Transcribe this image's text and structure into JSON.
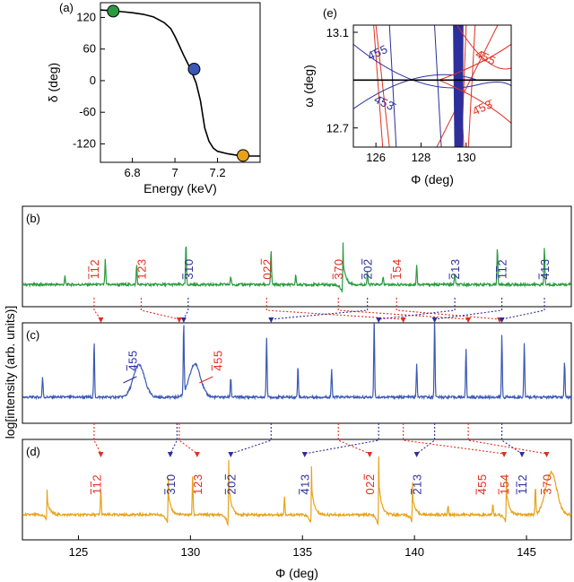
{
  "figure": {
    "shared_ylabel": "log[intensity (arb. units)]",
    "colors": {
      "green": "#2a9a40",
      "blue": "#3a58b4",
      "orange": "#e8a21a",
      "red": "#e03020",
      "navy": "#2c2f9c"
    }
  },
  "chart_data": [
    {
      "id": "a",
      "panel_label": "(a)",
      "type": "line",
      "xlabel": "Energy (keV)",
      "ylabel": "δ (deg)",
      "xlim": [
        6.65,
        7.4
      ],
      "ylim": [
        -155,
        148
      ],
      "xticks": [
        6.8,
        7,
        7.2
      ],
      "xtick_labels": [
        "6.8",
        "7",
        "7.2"
      ],
      "yticks": [
        120,
        60,
        0,
        -60,
        -120
      ],
      "ytick_labels": [
        "120",
        "60",
        "0",
        "-60",
        "-120"
      ],
      "curve": {
        "x": [
          6.65,
          6.7,
          6.75,
          6.8,
          6.85,
          6.9,
          6.95,
          6.98,
          7.0,
          7.02,
          7.04,
          7.06,
          7.08,
          7.1,
          7.12,
          7.14,
          7.16,
          7.18,
          7.2,
          7.25,
          7.3,
          7.35,
          7.4
        ],
        "y": [
          134,
          133,
          131,
          129,
          126,
          121,
          110,
          99,
          84,
          67,
          49,
          33,
          15,
          -5,
          -38,
          -90,
          -115,
          -128,
          -134,
          -139,
          -142,
          -143,
          -143
        ]
      },
      "markers": [
        {
          "x": 6.71,
          "y": 132,
          "color": "green"
        },
        {
          "x": 7.09,
          "y": 22,
          "color": "blue"
        },
        {
          "x": 7.32,
          "y": -142,
          "color": "orange"
        }
      ]
    },
    {
      "id": "e",
      "panel_label": "(e)",
      "type": "line",
      "xlabel": "Φ (deg)",
      "ylabel": "ω (deg)",
      "xlim": [
        125,
        132
      ],
      "ylim": [
        12.62,
        13.13
      ],
      "xticks": [
        126,
        128,
        130
      ],
      "xtick_labels": [
        "126",
        "128",
        "130"
      ],
      "yticks": [
        13.1,
        12.7
      ],
      "ytick_labels": [
        "13.1",
        "12.7"
      ],
      "horizontal_line": 12.9,
      "labels": [
        {
          "text": "4̄55",
          "x": 126.15,
          "y": 13.0,
          "color": "blue",
          "rotate": -25
        },
        {
          "text": "4̄53̄",
          "x": 126.3,
          "y": 12.79,
          "color": "blue",
          "rotate": 25
        },
        {
          "text": "4̄55",
          "x": 130.8,
          "y": 12.98,
          "color": "red",
          "rotate": 25
        },
        {
          "text": "4̄53̄",
          "x": 130.8,
          "y": 12.77,
          "color": "red",
          "rotate": -25
        }
      ]
    },
    {
      "id": "b",
      "panel_label": "(b)",
      "type": "line",
      "color": "green",
      "xlim": [
        122.5,
        147
      ],
      "ylim": [
        0,
        1
      ],
      "baseline": 0.22,
      "peaks": [
        {
          "x": 124.4,
          "h": 0.08,
          "kind": "spike"
        },
        {
          "x": 126.2,
          "h": 0.25,
          "kind": "spike"
        },
        {
          "x": 127.6,
          "h": 0.2,
          "kind": "spike"
        },
        {
          "x": 129.8,
          "h": 0.42,
          "kind": "spike"
        },
        {
          "x": 131.8,
          "h": 0.08,
          "kind": "spike"
        },
        {
          "x": 133.6,
          "h": 0.35,
          "kind": "spike"
        },
        {
          "x": 134.7,
          "h": 0.1,
          "kind": "spike"
        },
        {
          "x": 136.8,
          "h": 0.42,
          "kind": "disp"
        },
        {
          "x": 137.9,
          "h": 0.12,
          "kind": "spike"
        },
        {
          "x": 138.6,
          "h": 0.08,
          "kind": "spike"
        },
        {
          "x": 140.1,
          "h": 0.2,
          "kind": "spike"
        },
        {
          "x": 141.8,
          "h": 0.12,
          "kind": "spike"
        },
        {
          "x": 143.7,
          "h": 0.38,
          "kind": "spike"
        },
        {
          "x": 145.8,
          "h": 0.38,
          "kind": "spike"
        }
      ]
    },
    {
      "id": "c",
      "panel_label": "(c)",
      "type": "line",
      "color": "blue",
      "xlim": [
        122.5,
        147
      ],
      "ylim": [
        0,
        1
      ],
      "baseline": 0.26,
      "peaks": [
        {
          "x": 123.4,
          "h": 0.2,
          "kind": "spike"
        },
        {
          "x": 125.7,
          "h": 0.55,
          "kind": "spike"
        },
        {
          "x": 127.7,
          "h": 0.32,
          "kind": "bump"
        },
        {
          "x": 129.7,
          "h": 0.72,
          "kind": "spike"
        },
        {
          "x": 130.2,
          "h": 0.33,
          "kind": "bump"
        },
        {
          "x": 131.8,
          "h": 0.2,
          "kind": "spike"
        },
        {
          "x": 133.4,
          "h": 0.6,
          "kind": "spike"
        },
        {
          "x": 134.8,
          "h": 0.32,
          "kind": "spike"
        },
        {
          "x": 136.3,
          "h": 0.28,
          "kind": "spike"
        },
        {
          "x": 138.2,
          "h": 0.78,
          "kind": "spike"
        },
        {
          "x": 140.1,
          "h": 0.34,
          "kind": "spike"
        },
        {
          "x": 140.9,
          "h": 0.8,
          "kind": "spike"
        },
        {
          "x": 142.3,
          "h": 0.5,
          "kind": "spike"
        },
        {
          "x": 143.9,
          "h": 0.62,
          "kind": "spike"
        },
        {
          "x": 144.9,
          "h": 0.55,
          "kind": "spike"
        },
        {
          "x": 146.7,
          "h": 0.35,
          "kind": "spike"
        }
      ]
    },
    {
      "id": "d",
      "panel_label": "(d)",
      "type": "line",
      "color": "orange",
      "xlabel": "Φ (deg)",
      "xlim": [
        122.5,
        147
      ],
      "ylim": [
        0,
        1
      ],
      "xticks": [
        125,
        130,
        135,
        140,
        145
      ],
      "xtick_labels": [
        "125",
        "130",
        "135",
        "140",
        "145"
      ],
      "baseline": 0.25,
      "peaks": [
        {
          "x": 123.6,
          "h": 0.25,
          "kind": "disp"
        },
        {
          "x": 126.0,
          "h": 0.25,
          "kind": "spike"
        },
        {
          "x": 129.0,
          "h": 0.38,
          "kind": "disp"
        },
        {
          "x": 130.1,
          "h": 0.38,
          "kind": "spike"
        },
        {
          "x": 131.7,
          "h": 0.55,
          "kind": "disp"
        },
        {
          "x": 134.2,
          "h": 0.18,
          "kind": "spike"
        },
        {
          "x": 135.4,
          "h": 0.48,
          "kind": "disp"
        },
        {
          "x": 138.4,
          "h": 0.58,
          "kind": "disp"
        },
        {
          "x": 139.9,
          "h": 0.32,
          "kind": "disp"
        },
        {
          "x": 141.5,
          "h": 0.1,
          "kind": "spike"
        },
        {
          "x": 143.5,
          "h": 0.1,
          "kind": "spike"
        },
        {
          "x": 144.1,
          "h": 0.4,
          "kind": "disp"
        },
        {
          "x": 145.4,
          "h": 0.28,
          "kind": "spike"
        },
        {
          "x": 146.1,
          "h": 0.42,
          "kind": "bump"
        }
      ]
    }
  ],
  "reflections_b": [
    {
      "text": "112",
      "ob": [
        1,
        1,
        0
      ],
      "x": 125.7,
      "color": "red"
    },
    {
      "text": "123",
      "ob": [
        0,
        0,
        0
      ],
      "x": 127.8,
      "color": "red"
    },
    {
      "text": "310",
      "ob": [
        1,
        0,
        0
      ],
      "x": 129.9,
      "color": "blue"
    },
    {
      "text": "022",
      "ob": [
        0,
        0,
        1
      ],
      "x": 133.4,
      "color": "red"
    },
    {
      "text": "370",
      "ob": [
        1,
        0,
        0
      ],
      "x": 136.6,
      "color": "red"
    },
    {
      "text": "202",
      "ob": [
        1,
        0,
        1
      ],
      "x": 137.9,
      "color": "blue"
    },
    {
      "text": "154",
      "ob": [
        1,
        0,
        0
      ],
      "x": 139.2,
      "color": "red"
    },
    {
      "text": "213",
      "ob": [
        1,
        0,
        0
      ],
      "x": 141.8,
      "color": "blue"
    },
    {
      "text": "112",
      "ob": [
        1,
        1,
        0
      ],
      "x": 143.9,
      "color": "blue"
    },
    {
      "text": "413",
      "ob": [
        1,
        0,
        0
      ],
      "x": 145.8,
      "color": "blue"
    }
  ],
  "reflections_d": [
    {
      "text": "112",
      "ob": [
        1,
        1,
        0
      ],
      "x": 125.8,
      "color": "red"
    },
    {
      "text": "310",
      "ob": [
        1,
        0,
        0
      ],
      "x": 129.1,
      "color": "blue"
    },
    {
      "text": "123",
      "ob": [
        0,
        0,
        0
      ],
      "x": 130.3,
      "color": "red"
    },
    {
      "text": "202",
      "ob": [
        1,
        0,
        1
      ],
      "x": 131.8,
      "color": "blue"
    },
    {
      "text": "413",
      "ob": [
        1,
        0,
        0
      ],
      "x": 135.1,
      "color": "blue"
    },
    {
      "text": "022",
      "ob": [
        0,
        0,
        1
      ],
      "x": 138.0,
      "color": "red"
    },
    {
      "text": "213",
      "ob": [
        1,
        0,
        0
      ],
      "x": 140.1,
      "color": "blue"
    },
    {
      "text": "455",
      "ob": [
        1,
        0,
        0
      ],
      "x": 143.0,
      "color": "red"
    },
    {
      "text": "154",
      "ob": [
        1,
        0,
        0
      ],
      "x": 144.0,
      "color": "red"
    },
    {
      "text": "112",
      "ob": [
        1,
        1,
        0
      ],
      "x": 144.8,
      "color": "blue"
    },
    {
      "text": "370",
      "ob": [
        1,
        0,
        0
      ],
      "x": 145.9,
      "color": "red"
    }
  ],
  "reflections_c": [
    {
      "text": "455",
      "ob": [
        1,
        0,
        0
      ],
      "color": "blue"
    },
    {
      "text": "455",
      "ob": [
        1,
        0,
        0
      ],
      "color": "red"
    }
  ],
  "connectors_top": [
    {
      "from": 125.7,
      "to": 126.0,
      "color": "red"
    },
    {
      "from": 127.8,
      "to": 129.5,
      "color": "red"
    },
    {
      "from": 129.9,
      "to": 129.7,
      "color": "blue"
    },
    {
      "from": 133.4,
      "to": 139.5,
      "color": "red"
    },
    {
      "from": 136.6,
      "to": 142.4,
      "color": "red"
    },
    {
      "from": 137.9,
      "to": 133.6,
      "color": "blue"
    },
    {
      "from": 139.2,
      "to": 143.8,
      "color": "red"
    },
    {
      "from": 141.8,
      "to": 138.4,
      "color": "blue"
    },
    {
      "from": 143.9,
      "to": 140.9,
      "color": "blue"
    },
    {
      "from": 145.8,
      "to": 143.9,
      "color": "blue"
    }
  ],
  "connectors_bottom": [
    {
      "from": 125.7,
      "to": 126.0,
      "color": "red"
    },
    {
      "from": 129.4,
      "to": 129.1,
      "color": "blue"
    },
    {
      "from": 129.5,
      "to": 130.3,
      "color": "red"
    },
    {
      "from": 133.6,
      "to": 131.8,
      "color": "blue"
    },
    {
      "from": 138.4,
      "to": 135.1,
      "color": "blue"
    },
    {
      "from": 136.6,
      "to": 138.0,
      "color": "red"
    },
    {
      "from": 140.9,
      "to": 140.1,
      "color": "blue"
    },
    {
      "from": 139.5,
      "to": 144.0,
      "color": "red"
    },
    {
      "from": 143.9,
      "to": 144.8,
      "color": "blue"
    },
    {
      "from": 142.4,
      "to": 145.9,
      "color": "red"
    }
  ]
}
